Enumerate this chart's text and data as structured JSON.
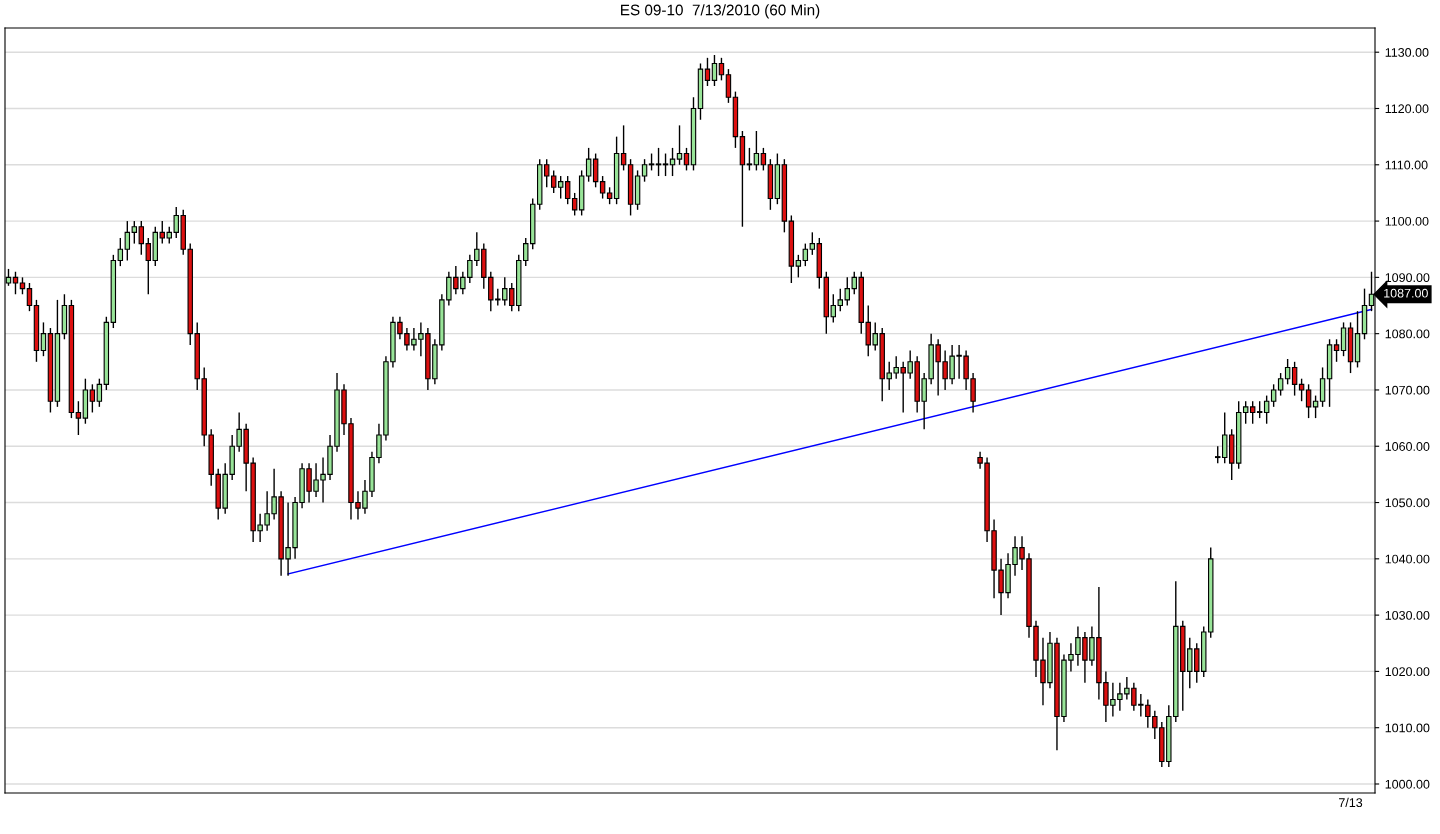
{
  "chart_data": {
    "type": "candlestick",
    "title": "ES 09-10  7/13/2010 (60 Min)",
    "categories": [
      null,
      null,
      null,
      null,
      null,
      null,
      null,
      null,
      null,
      null,
      null,
      null,
      null,
      null,
      null,
      null,
      null,
      null,
      null,
      null,
      null,
      null,
      null,
      null,
      null,
      null,
      null,
      null,
      null,
      null,
      null,
      null,
      null,
      null,
      null,
      null,
      null,
      null,
      null,
      null,
      null,
      null,
      null,
      null,
      null,
      null,
      null,
      null,
      null,
      null,
      null,
      null,
      null,
      null,
      null,
      null,
      null,
      null,
      null,
      null,
      null,
      null,
      null,
      null,
      null,
      null,
      null,
      null,
      null,
      null,
      null,
      null,
      null,
      null,
      null,
      null,
      null,
      null,
      null,
      null,
      null,
      null,
      null,
      null,
      null,
      null,
      null,
      null,
      null,
      null,
      null,
      null,
      null,
      null,
      null,
      null,
      null,
      null,
      null,
      null,
      null,
      null,
      null,
      null,
      null,
      null,
      null,
      null,
      null,
      null,
      null,
      null,
      null,
      null,
      null,
      null,
      null,
      null,
      null,
      null,
      null,
      null,
      null,
      null,
      null,
      null,
      null,
      null,
      null,
      null,
      null,
      null,
      null,
      null,
      null,
      null,
      null,
      null,
      null,
      null,
      null,
      null,
      null,
      null,
      null,
      null,
      null,
      null,
      null,
      null,
      null,
      null,
      null,
      null,
      null,
      null,
      null,
      null,
      null,
      null,
      null,
      null,
      null,
      null,
      null,
      null,
      null,
      null,
      null,
      null,
      null,
      null,
      null,
      null,
      null,
      null,
      null,
      null,
      null,
      null,
      null,
      null,
      null,
      null,
      null,
      null,
      null,
      null,
      null,
      null,
      null,
      null,
      "7/13",
      null,
      null,
      null
    ],
    "ohlc": [
      [
        1089,
        1091.5,
        1088.5,
        1090
      ],
      [
        1090,
        1091,
        1087,
        1089
      ],
      [
        1089,
        1090,
        1087,
        1088
      ],
      [
        1088,
        1089,
        1084,
        1085
      ],
      [
        1085,
        1086,
        1075,
        1077
      ],
      [
        1077,
        1082,
        1076,
        1080
      ],
      [
        1080,
        1081,
        1066,
        1068
      ],
      [
        1068,
        1086,
        1067,
        1080
      ],
      [
        1080,
        1087,
        1079,
        1085
      ],
      [
        1085,
        1086,
        1065,
        1066
      ],
      [
        1066,
        1068,
        1062,
        1065
      ],
      [
        1065,
        1072,
        1064,
        1070
      ],
      [
        1070,
        1071,
        1066,
        1068
      ],
      [
        1068,
        1072,
        1067,
        1071
      ],
      [
        1071,
        1083,
        1070,
        1082
      ],
      [
        1082,
        1094,
        1081,
        1093
      ],
      [
        1093,
        1097,
        1092,
        1095
      ],
      [
        1095,
        1100,
        1093,
        1098
      ],
      [
        1098,
        1100,
        1096,
        1099
      ],
      [
        1099,
        1100,
        1094,
        1096
      ],
      [
        1096,
        1097,
        1087,
        1093
      ],
      [
        1093,
        1099,
        1092,
        1098
      ],
      [
        1098,
        1100,
        1096,
        1097
      ],
      [
        1097,
        1099,
        1096,
        1098
      ],
      [
        1098,
        1102.5,
        1097,
        1101
      ],
      [
        1101,
        1102,
        1094,
        1095
      ],
      [
        1095,
        1096,
        1078,
        1080
      ],
      [
        1080,
        1082,
        1070,
        1072
      ],
      [
        1072,
        1074,
        1060,
        1062
      ],
      [
        1062,
        1063,
        1053,
        1055
      ],
      [
        1055,
        1056,
        1047,
        1049
      ],
      [
        1049,
        1057,
        1048,
        1055
      ],
      [
        1055,
        1062,
        1054,
        1060
      ],
      [
        1060,
        1066,
        1059,
        1063
      ],
      [
        1063,
        1064,
        1052,
        1057
      ],
      [
        1057,
        1058,
        1043,
        1045
      ],
      [
        1045,
        1048,
        1043,
        1046
      ],
      [
        1046,
        1052,
        1045,
        1048
      ],
      [
        1048,
        1056,
        1047,
        1051
      ],
      [
        1051,
        1052,
        1037,
        1040
      ],
      [
        1040,
        1050,
        1037,
        1042
      ],
      [
        1042,
        1051,
        1040,
        1050
      ],
      [
        1050,
        1057,
        1049,
        1056
      ],
      [
        1056,
        1057,
        1050,
        1052
      ],
      [
        1052,
        1057,
        1051,
        1054
      ],
      [
        1054,
        1058,
        1050,
        1055
      ],
      [
        1055,
        1062,
        1054,
        1060
      ],
      [
        1060,
        1073,
        1059,
        1070
      ],
      [
        1070,
        1071,
        1062,
        1064
      ],
      [
        1064,
        1065,
        1047,
        1050
      ],
      [
        1050,
        1052,
        1047,
        1049
      ],
      [
        1049,
        1054,
        1048,
        1052
      ],
      [
        1052,
        1059,
        1051,
        1058
      ],
      [
        1058,
        1064,
        1057,
        1062
      ],
      [
        1062,
        1076,
        1061,
        1075
      ],
      [
        1075,
        1083,
        1074,
        1082
      ],
      [
        1082,
        1083,
        1079,
        1080
      ],
      [
        1080,
        1081,
        1077,
        1078
      ],
      [
        1078,
        1081,
        1077,
        1079
      ],
      [
        1079,
        1082,
        1076,
        1080
      ],
      [
        1080,
        1081,
        1070,
        1072
      ],
      [
        1072,
        1079,
        1071,
        1078
      ],
      [
        1078,
        1087,
        1077,
        1086
      ],
      [
        1086,
        1091,
        1085,
        1090
      ],
      [
        1090,
        1092,
        1087,
        1088
      ],
      [
        1088,
        1091,
        1087,
        1090
      ],
      [
        1090,
        1094,
        1089,
        1093
      ],
      [
        1093,
        1098,
        1092,
        1095
      ],
      [
        1095,
        1096,
        1088,
        1090
      ],
      [
        1090,
        1091,
        1084,
        1086
      ],
      [
        1086,
        1088,
        1085,
        1086
      ],
      [
        1086,
        1090,
        1085,
        1088
      ],
      [
        1088,
        1089,
        1084,
        1085
      ],
      [
        1085,
        1094,
        1084,
        1093
      ],
      [
        1093,
        1097,
        1092,
        1096
      ],
      [
        1096,
        1104,
        1095,
        1103
      ],
      [
        1103,
        1111,
        1102,
        1110
      ],
      [
        1110,
        1111,
        1106,
        1108
      ],
      [
        1108,
        1109,
        1105,
        1106
      ],
      [
        1106,
        1108,
        1104,
        1107
      ],
      [
        1107,
        1108,
        1103,
        1104
      ],
      [
        1104,
        1105,
        1101,
        1102
      ],
      [
        1102,
        1109,
        1101,
        1108
      ],
      [
        1108,
        1113,
        1107,
        1111
      ],
      [
        1111,
        1112,
        1106,
        1107
      ],
      [
        1107,
        1108,
        1104,
        1105
      ],
      [
        1105,
        1106,
        1103,
        1104
      ],
      [
        1104,
        1115,
        1103,
        1112
      ],
      [
        1112,
        1117,
        1109,
        1110
      ],
      [
        1110,
        1111,
        1101,
        1103
      ],
      [
        1103,
        1109,
        1102,
        1108
      ],
      [
        1108,
        1111,
        1107,
        1110
      ],
      [
        1110,
        1112,
        1109,
        1110
      ],
      [
        1110,
        1113,
        1108,
        1110
      ],
      [
        1110,
        1112,
        1108,
        1110
      ],
      [
        1110,
        1113,
        1108,
        1111
      ],
      [
        1111,
        1117,
        1110,
        1112
      ],
      [
        1112,
        1113,
        1109,
        1110
      ],
      [
        1110,
        1122,
        1109,
        1120
      ],
      [
        1120,
        1128,
        1118,
        1127
      ],
      [
        1127,
        1129,
        1124,
        1125
      ],
      [
        1125,
        1129.5,
        1124,
        1128
      ],
      [
        1128,
        1129,
        1125,
        1126
      ],
      [
        1126,
        1127,
        1121,
        1122
      ],
      [
        1122,
        1123,
        1113,
        1115
      ],
      [
        1115,
        1116,
        1099,
        1110
      ],
      [
        1110,
        1113,
        1109,
        1110
      ],
      [
        1110,
        1116,
        1109,
        1112
      ],
      [
        1112,
        1113,
        1109,
        1110
      ],
      [
        1110,
        1111,
        1102,
        1104
      ],
      [
        1104,
        1112,
        1103,
        1110
      ],
      [
        1110,
        1111,
        1098,
        1100
      ],
      [
        1100,
        1101,
        1089,
        1092
      ],
      [
        1092,
        1094,
        1090,
        1093
      ],
      [
        1093,
        1096,
        1092,
        1095
      ],
      [
        1095,
        1098,
        1094,
        1096
      ],
      [
        1096,
        1097,
        1088,
        1090
      ],
      [
        1090,
        1091,
        1080,
        1083
      ],
      [
        1083,
        1087,
        1082,
        1085
      ],
      [
        1085,
        1088,
        1084,
        1086
      ],
      [
        1086,
        1090,
        1085,
        1088
      ],
      [
        1088,
        1091,
        1087,
        1090
      ],
      [
        1090,
        1091,
        1080,
        1082
      ],
      [
        1082,
        1085,
        1076,
        1078
      ],
      [
        1078,
        1082,
        1077,
        1080
      ],
      [
        1080,
        1081,
        1068,
        1072
      ],
      [
        1072,
        1075,
        1070,
        1073
      ],
      [
        1073,
        1076,
        1072,
        1074
      ],
      [
        1074,
        1075,
        1066,
        1073
      ],
      [
        1073,
        1077,
        1072,
        1075
      ],
      [
        1075,
        1076,
        1066,
        1068
      ],
      [
        1068,
        1073,
        1063,
        1072
      ],
      [
        1072,
        1080,
        1071,
        1078
      ],
      [
        1078,
        1079,
        1069,
        1075
      ],
      [
        1075,
        1077,
        1070,
        1072
      ],
      [
        1072,
        1078,
        1071,
        1076
      ],
      [
        1076,
        1078,
        1072,
        1076
      ],
      [
        1076,
        1077,
        1070,
        1072
      ],
      [
        1072,
        1073,
        1066,
        1068
      ],
      [
        1058,
        1059,
        1056,
        1057
      ],
      [
        1057,
        1058,
        1043,
        1045
      ],
      [
        1045,
        1047,
        1033,
        1038
      ],
      [
        1038,
        1040,
        1030,
        1034
      ],
      [
        1034,
        1041,
        1033,
        1039
      ],
      [
        1039,
        1044,
        1037,
        1042
      ],
      [
        1042,
        1044,
        1038,
        1040
      ],
      [
        1040,
        1041,
        1026,
        1028
      ],
      [
        1028,
        1029,
        1019,
        1022
      ],
      [
        1022,
        1026,
        1014,
        1018
      ],
      [
        1018,
        1027,
        1017,
        1025
      ],
      [
        1025,
        1026,
        1006,
        1012
      ],
      [
        1012,
        1023,
        1011,
        1022
      ],
      [
        1022,
        1025,
        1020,
        1023
      ],
      [
        1023,
        1028,
        1021,
        1026
      ],
      [
        1026,
        1027,
        1018,
        1022
      ],
      [
        1022,
        1028,
        1021,
        1026
      ],
      [
        1026,
        1035,
        1015,
        1018
      ],
      [
        1018,
        1020,
        1011,
        1014
      ],
      [
        1014,
        1018,
        1012,
        1015
      ],
      [
        1015,
        1018,
        1013,
        1016
      ],
      [
        1016,
        1019,
        1015,
        1017
      ],
      [
        1017,
        1018,
        1013,
        1014
      ],
      [
        1014,
        1016,
        1012,
        1014
      ],
      [
        1014,
        1015,
        1010,
        1012
      ],
      [
        1012,
        1013,
        1008,
        1010
      ],
      [
        1010,
        1011,
        1003,
        1004
      ],
      [
        1004,
        1014,
        1003,
        1012
      ],
      [
        1012,
        1036,
        1011,
        1028
      ],
      [
        1028,
        1029,
        1013,
        1020
      ],
      [
        1020,
        1026,
        1017,
        1024
      ],
      [
        1024,
        1025,
        1018,
        1020
      ],
      [
        1020,
        1028,
        1019,
        1027
      ],
      [
        1027,
        1042,
        1026,
        1040
      ],
      [
        1058,
        1060,
        1057,
        1058
      ],
      [
        1058,
        1066,
        1057,
        1062
      ],
      [
        1062,
        1063,
        1054,
        1057
      ],
      [
        1057,
        1068,
        1056,
        1066
      ],
      [
        1066,
        1068,
        1064,
        1067
      ],
      [
        1067,
        1068,
        1064,
        1066
      ],
      [
        1066,
        1068,
        1065,
        1066
      ],
      [
        1066,
        1069,
        1064,
        1068
      ],
      [
        1068,
        1071,
        1067,
        1070
      ],
      [
        1070,
        1073,
        1069,
        1072
      ],
      [
        1072,
        1075.5,
        1071,
        1074
      ],
      [
        1074,
        1075,
        1069,
        1071
      ],
      [
        1071,
        1072,
        1068,
        1070
      ],
      [
        1070,
        1071,
        1065,
        1067
      ],
      [
        1067,
        1069,
        1065,
        1068
      ],
      [
        1068,
        1074,
        1067,
        1072
      ],
      [
        1072,
        1079,
        1067,
        1078
      ],
      [
        1078,
        1079,
        1075,
        1077
      ],
      [
        1077,
        1082,
        1076,
        1081
      ],
      [
        1081,
        1082,
        1073,
        1075
      ],
      [
        1075,
        1084,
        1074,
        1080
      ],
      [
        1080,
        1088,
        1079,
        1085
      ],
      [
        1085,
        1091,
        1084,
        1087
      ]
    ],
    "series": [
      {
        "type": "line",
        "color": "#0000ff",
        "values": [
          null,
          null,
          null,
          null,
          null,
          null,
          null,
          null,
          null,
          null,
          null,
          null,
          null,
          null,
          null,
          null,
          null,
          null,
          null,
          null,
          null,
          null,
          null,
          null,
          null,
          null,
          null,
          null,
          null,
          null,
          null,
          null,
          null,
          null,
          null,
          null,
          null,
          null,
          null,
          null,
          1037.3,
          null,
          null,
          null,
          null,
          null,
          null,
          null,
          null,
          null,
          null,
          null,
          null,
          null,
          null,
          null,
          null,
          null,
          null,
          null,
          null,
          null,
          null,
          null,
          null,
          null,
          null,
          null,
          null,
          null,
          null,
          null,
          null,
          null,
          null,
          null,
          null,
          null,
          null,
          null,
          null,
          null,
          null,
          null,
          null,
          null,
          null,
          null,
          null,
          null,
          null,
          null,
          null,
          null,
          null,
          null,
          null,
          null,
          null,
          null,
          null,
          null,
          null,
          null,
          null,
          null,
          null,
          null,
          null,
          null,
          null,
          null,
          null,
          null,
          null,
          null,
          null,
          null,
          null,
          null,
          null,
          null,
          null,
          null,
          null,
          null,
          null,
          null,
          null,
          null,
          null,
          null,
          null,
          null,
          null,
          null,
          null,
          null,
          null,
          null,
          null,
          null,
          null,
          null,
          null,
          null,
          null,
          null,
          null,
          null,
          null,
          null,
          null,
          null,
          null,
          null,
          null,
          null,
          null,
          null,
          null,
          null,
          null,
          null,
          null,
          null,
          null,
          null,
          null,
          null,
          null,
          null,
          null,
          null,
          null,
          null,
          null,
          null,
          null,
          null,
          null,
          null,
          null,
          null,
          null,
          null,
          null,
          null,
          null,
          null,
          null,
          null,
          null,
          null,
          null,
          1084.3
        ]
      }
    ],
    "ylim": [
      998.4,
      1134.3
    ],
    "yticks": [
      {
        "value": 1000,
        "label": "1000.00"
      },
      {
        "value": 1010,
        "label": "1010.00"
      },
      {
        "value": 1020,
        "label": "1020.00"
      },
      {
        "value": 1030,
        "label": "1030.00"
      },
      {
        "value": 1040,
        "label": "1040.00"
      },
      {
        "value": 1050,
        "label": "1050.00"
      },
      {
        "value": 1060,
        "label": "1060.00"
      },
      {
        "value": 1070,
        "label": "1070.00"
      },
      {
        "value": 1080,
        "label": "1080.00"
      },
      {
        "value": 1090,
        "label": "1090.00"
      },
      {
        "value": 1100,
        "label": "1100.00"
      },
      {
        "value": 1110,
        "label": "1110.00"
      },
      {
        "value": 1120,
        "label": "1120.00"
      },
      {
        "value": 1130,
        "label": "1130.00"
      }
    ],
    "annotations": [
      "1087.00"
    ],
    "grid": true
  }
}
